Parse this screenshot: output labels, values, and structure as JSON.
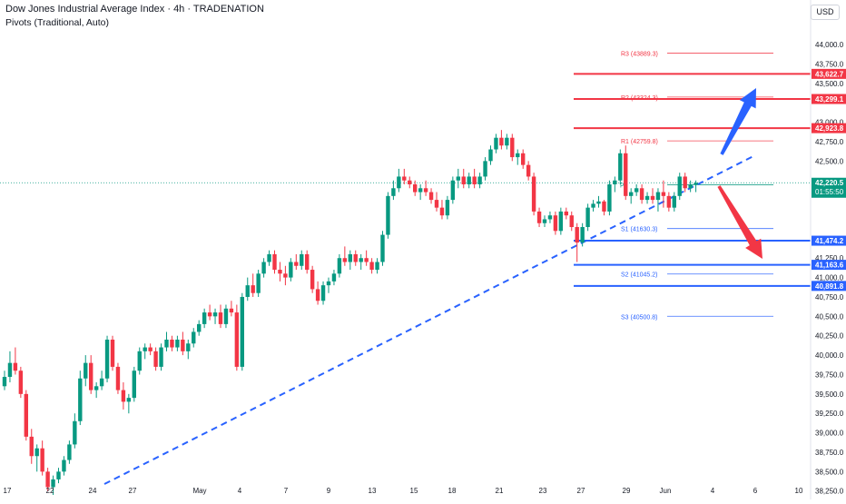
{
  "header": {
    "title": "Dow Jones Industrial Average Index · 4h · TRADENATION",
    "indicator": "Pivots (Traditional, Auto)",
    "currency": "USD"
  },
  "chart_data": {
    "type": "candlestick",
    "y_ticks": [
      38250,
      38500,
      38750,
      39000,
      39250,
      39500,
      39750,
      40000,
      40250,
      40500,
      40750,
      41000,
      41250,
      42500,
      42750,
      43000,
      43500,
      43750,
      44000
    ],
    "y_tick_labels": [
      "38,250.0",
      "38,500.0",
      "38,750.0",
      "39,000.0",
      "39,250.0",
      "39,500.0",
      "39,750.0",
      "40,000.0",
      "40,250.0",
      "40,500.0",
      "40,750.0",
      "41,000.0",
      "41,250.0",
      "42,500.0",
      "42,750.0",
      "43,000.0",
      "43,500.0",
      "43,750.0",
      "44,000.0"
    ],
    "x_labels": [
      "17",
      "22",
      "24",
      "27",
      "May",
      "4",
      "7",
      "9",
      "13",
      "15",
      "18",
      "21",
      "23",
      "27",
      "29",
      "Jun",
      "4",
      "6",
      "10"
    ],
    "current_price": {
      "value": 42220.5,
      "label": "42,220.5",
      "countdown": "01:55:50"
    },
    "pivots": [
      {
        "name": "R3",
        "value": 43889.3,
        "label": "R3 (43889.3)"
      },
      {
        "name": "R2",
        "value": 43324.3,
        "label": "R2 (43324.3)"
      },
      {
        "name": "R1",
        "value": 42759.8,
        "label": "R1 (42759.8)"
      },
      {
        "name": "P",
        "value": 42194.8,
        "label": "P"
      },
      {
        "name": "S1",
        "value": 41630.3,
        "label": "S1 (41630.3)"
      },
      {
        "name": "S2",
        "value": 41045.2,
        "label": "S2 (41045.2)"
      },
      {
        "name": "S3",
        "value": 40500.8,
        "label": "S3 (40500.8)"
      }
    ],
    "resistance_levels": [
      {
        "value": 43622.7,
        "label": "43,622.7"
      },
      {
        "value": 43299.1,
        "label": "43,299.1"
      },
      {
        "value": 42923.8,
        "label": "42,923.8"
      }
    ],
    "support_levels": [
      {
        "value": 41474.2,
        "label": "41,474.2"
      },
      {
        "value": 41163.6,
        "label": "41,163.6"
      },
      {
        "value": 40891.8,
        "label": "40,891.8"
      }
    ],
    "colors": {
      "up": "#089981",
      "down": "#f23645",
      "resistance": "#f23645",
      "support": "#2962ff",
      "trendline": "#2962ff",
      "arrow_up": "#2962ff",
      "arrow_down": "#f23645"
    },
    "candles": [
      [
        0,
        39600,
        39800,
        39550,
        39720
      ],
      [
        1,
        39720,
        40050,
        39650,
        39900
      ],
      [
        2,
        39900,
        40100,
        39750,
        39800
      ],
      [
        3,
        39800,
        39850,
        39450,
        39500
      ],
      [
        4,
        39500,
        39550,
        38900,
        38950
      ],
      [
        5,
        38950,
        39050,
        38600,
        38700
      ],
      [
        6,
        38700,
        38850,
        38500,
        38800
      ],
      [
        7,
        38800,
        38900,
        38450,
        38500
      ],
      [
        8,
        38500,
        38550,
        38250,
        38300
      ],
      [
        9,
        38300,
        38450,
        38200,
        38400
      ],
      [
        10,
        38400,
        38550,
        38350,
        38500
      ],
      [
        11,
        38500,
        38700,
        38450,
        38650
      ],
      [
        12,
        38650,
        38900,
        38600,
        38850
      ],
      [
        13,
        38850,
        39250,
        38800,
        39150
      ],
      [
        14,
        39150,
        39800,
        39100,
        39700
      ],
      [
        15,
        39700,
        40000,
        39600,
        39900
      ],
      [
        16,
        39900,
        40000,
        39500,
        39550
      ],
      [
        17,
        39550,
        39650,
        39450,
        39600
      ],
      [
        18,
        39600,
        39800,
        39550,
        39700
      ],
      [
        19,
        39700,
        40250,
        39650,
        40200
      ],
      [
        20,
        40200,
        40250,
        39800,
        39850
      ],
      [
        21,
        39850,
        39900,
        39500,
        39550
      ],
      [
        22,
        39550,
        39650,
        39300,
        39400
      ],
      [
        23,
        39400,
        39500,
        39250,
        39450
      ],
      [
        24,
        39450,
        39850,
        39400,
        39800
      ],
      [
        25,
        39800,
        40100,
        39750,
        40050
      ],
      [
        26,
        40050,
        40150,
        39950,
        40100
      ],
      [
        27,
        40100,
        40150,
        40000,
        40050
      ],
      [
        28,
        40050,
        40100,
        39800,
        39850
      ],
      [
        29,
        39850,
        40150,
        39800,
        40100
      ],
      [
        30,
        40100,
        40300,
        40050,
        40200
      ],
      [
        31,
        40200,
        40250,
        40050,
        40100
      ],
      [
        32,
        40100,
        40250,
        40050,
        40200
      ],
      [
        33,
        40200,
        40300,
        40000,
        40050
      ],
      [
        34,
        40050,
        40200,
        39950,
        40150
      ],
      [
        35,
        40150,
        40350,
        40100,
        40300
      ],
      [
        36,
        40300,
        40450,
        40250,
        40400
      ],
      [
        37,
        40400,
        40600,
        40350,
        40550
      ],
      [
        38,
        40550,
        40650,
        40450,
        40500
      ],
      [
        39,
        40500,
        40600,
        40400,
        40550
      ],
      [
        40,
        40550,
        40650,
        40350,
        40400
      ],
      [
        41,
        40400,
        40650,
        40350,
        40600
      ],
      [
        42,
        40600,
        40700,
        40500,
        40550
      ],
      [
        43,
        40550,
        40650,
        39800,
        39850
      ],
      [
        44,
        39850,
        40800,
        39800,
        40750
      ],
      [
        45,
        40750,
        41000,
        40700,
        40900
      ],
      [
        46,
        40900,
        41050,
        40750,
        40800
      ],
      [
        47,
        40800,
        41100,
        40750,
        41050
      ],
      [
        48,
        41050,
        41250,
        41000,
        41200
      ],
      [
        49,
        41200,
        41350,
        41150,
        41300
      ],
      [
        50,
        41300,
        41350,
        41050,
        41100
      ],
      [
        51,
        41100,
        41200,
        40950,
        41050
      ],
      [
        52,
        41050,
        41150,
        40900,
        41000
      ],
      [
        53,
        41000,
        41250,
        40950,
        41200
      ],
      [
        54,
        41200,
        41300,
        41100,
        41150
      ],
      [
        55,
        41150,
        41350,
        41100,
        41300
      ],
      [
        56,
        41300,
        41350,
        41050,
        41100
      ],
      [
        57,
        41100,
        41150,
        40800,
        40850
      ],
      [
        58,
        40850,
        40950,
        40650,
        40700
      ],
      [
        59,
        40700,
        40950,
        40650,
        40900
      ],
      [
        60,
        40900,
        41000,
        40800,
        40950
      ],
      [
        61,
        40950,
        41100,
        40900,
        41050
      ],
      [
        62,
        41050,
        41300,
        41000,
        41250
      ],
      [
        63,
        41250,
        41400,
        41150,
        41200
      ],
      [
        64,
        41200,
        41350,
        41100,
        41300
      ],
      [
        65,
        41300,
        41350,
        41150,
        41200
      ],
      [
        66,
        41200,
        41300,
        41100,
        41250
      ],
      [
        67,
        41250,
        41350,
        41150,
        41200
      ],
      [
        68,
        41200,
        41250,
        41050,
        41100
      ],
      [
        69,
        41100,
        41250,
        41050,
        41200
      ],
      [
        70,
        41200,
        41600,
        41150,
        41550
      ],
      [
        71,
        41550,
        42100,
        41500,
        42050
      ],
      [
        72,
        42050,
        42250,
        42000,
        42150
      ],
      [
        73,
        42150,
        42400,
        42100,
        42300
      ],
      [
        74,
        42300,
        42400,
        42200,
        42250
      ],
      [
        75,
        42250,
        42300,
        42150,
        42200
      ],
      [
        76,
        42200,
        42250,
        42050,
        42100
      ],
      [
        77,
        42100,
        42200,
        42000,
        42150
      ],
      [
        78,
        42150,
        42250,
        42050,
        42100
      ],
      [
        79,
        42100,
        42150,
        41950,
        42000
      ],
      [
        80,
        42000,
        42100,
        41850,
        41900
      ],
      [
        81,
        41900,
        42000,
        41750,
        41800
      ],
      [
        82,
        41800,
        42050,
        41750,
        42000
      ],
      [
        83,
        42000,
        42300,
        41950,
        42250
      ],
      [
        84,
        42250,
        42400,
        42150,
        42300
      ],
      [
        85,
        42300,
        42400,
        42150,
        42200
      ],
      [
        86,
        42200,
        42350,
        42150,
        42300
      ],
      [
        87,
        42300,
        42400,
        42150,
        42200
      ],
      [
        88,
        42200,
        42350,
        42150,
        42300
      ],
      [
        89,
        42300,
        42550,
        42250,
        42500
      ],
      [
        90,
        42500,
        42700,
        42450,
        42650
      ],
      [
        91,
        42650,
        42850,
        42600,
        42800
      ],
      [
        92,
        42800,
        42900,
        42650,
        42700
      ],
      [
        93,
        42700,
        42850,
        42650,
        42800
      ],
      [
        94,
        42800,
        42850,
        42500,
        42550
      ],
      [
        95,
        42550,
        42650,
        42450,
        42600
      ],
      [
        96,
        42600,
        42650,
        42400,
        42450
      ],
      [
        97,
        42450,
        42500,
        42250,
        42300
      ],
      [
        98,
        42300,
        42350,
        41800,
        41850
      ],
      [
        99,
        41850,
        41900,
        41650,
        41700
      ],
      [
        100,
        41700,
        41800,
        41650,
        41750
      ],
      [
        101,
        41750,
        41850,
        41700,
        41800
      ],
      [
        102,
        41800,
        41850,
        41550,
        41600
      ],
      [
        103,
        41600,
        41900,
        41550,
        41850
      ],
      [
        104,
        41850,
        41900,
        41750,
        41800
      ],
      [
        105,
        41800,
        41850,
        41600,
        41650
      ],
      [
        106,
        41650,
        41700,
        41200,
        41450
      ],
      [
        107,
        41450,
        41700,
        41400,
        41650
      ],
      [
        108,
        41650,
        41950,
        41600,
        41900
      ],
      [
        109,
        41900,
        42000,
        41850,
        41950
      ],
      [
        110,
        41950,
        42050,
        41900,
        41980
      ],
      [
        111,
        41980,
        42000,
        41800,
        41850
      ],
      [
        112,
        41850,
        42250,
        41800,
        42200
      ],
      [
        113,
        42200,
        42300,
        42100,
        42250
      ],
      [
        114,
        42250,
        42650,
        42200,
        42600
      ],
      [
        115,
        42600,
        42700,
        42000,
        42050
      ],
      [
        116,
        42050,
        42150,
        41950,
        42100
      ],
      [
        117,
        42100,
        42200,
        42050,
        42150
      ],
      [
        118,
        42150,
        42200,
        41950,
        42000
      ],
      [
        119,
        42000,
        42100,
        41950,
        42050
      ],
      [
        120,
        42050,
        42150,
        41950,
        42000
      ],
      [
        121,
        42000,
        42150,
        41850,
        42100
      ],
      [
        122,
        42100,
        42250,
        41900,
        42050
      ],
      [
        123,
        42050,
        42100,
        41850,
        41900
      ],
      [
        124,
        41900,
        42100,
        41850,
        42050
      ],
      [
        125,
        42050,
        42350,
        42000,
        42300
      ],
      [
        126,
        42300,
        42350,
        42100,
        42150
      ],
      [
        127,
        42150,
        42250,
        42100,
        42200
      ],
      [
        128,
        42200,
        42250,
        42100,
        42220
      ]
    ]
  }
}
